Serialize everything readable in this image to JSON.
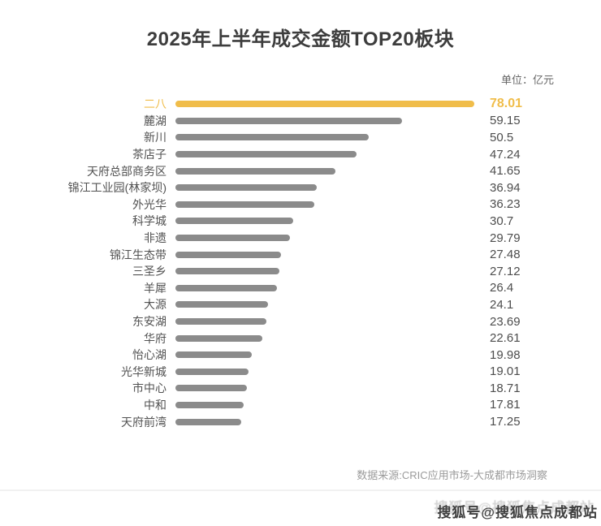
{
  "title": "2025年上半年成交金额TOP20板块",
  "unit_label": "单位：亿元",
  "source": "数据来源:CRIC应用市场-大成都市场洞察",
  "watermark": "搜狐号@搜狐焦点成都站",
  "colors": {
    "highlight": "#F0BD4A",
    "bar": "#8B8B8B",
    "title_text": "#3D3D3D",
    "label_text": "#525252",
    "source_text": "#9B9B9B"
  },
  "chart_data": {
    "type": "bar",
    "orientation": "horizontal",
    "title": "2025年上半年成交金额TOP20板块",
    "unit": "亿元",
    "xlabel": "",
    "ylabel": "",
    "xlim": [
      0,
      78.01
    ],
    "grid": false,
    "legend": false,
    "value_labels": true,
    "highlight_index": 0,
    "categories": [
      "二八",
      "麓湖",
      "新川",
      "茶店子",
      "天府总部商务区",
      "锦江工业园(林家坝)",
      "外光华",
      "科学城",
      "非遗",
      "锦江生态带",
      "三圣乡",
      "羊犀",
      "大源",
      "东安湖",
      "华府",
      "怡心湖",
      "光华新城",
      "市中心",
      "中和",
      "天府前湾"
    ],
    "values": [
      78.01,
      59.15,
      50.5,
      47.24,
      41.65,
      36.94,
      36.23,
      30.7,
      29.79,
      27.48,
      27.12,
      26.4,
      24.1,
      23.69,
      22.61,
      19.98,
      19.01,
      18.71,
      17.81,
      17.25
    ]
  }
}
